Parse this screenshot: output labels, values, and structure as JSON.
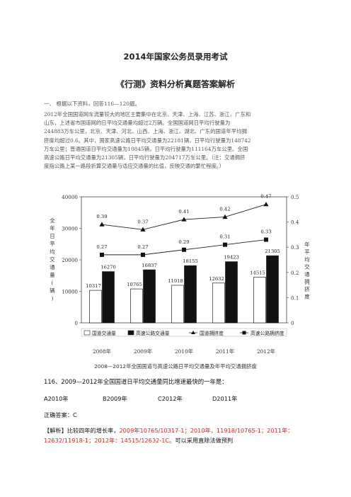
{
  "doc": {
    "title": "2014年国家公务员录用考试",
    "subtitle": "《行测》资料分析真题答案解析",
    "section": "一、 根据以下资料，回答116—120题。",
    "paragraph_lines": [
      "2012年全国国道网车流量较大的地区主要集中在北京、天津、上海、江苏、浙江、广东和",
      "山东，上述省市国道网的日平均交通量均超过2万辆。全国国道网日平均行驶量为",
      "244883万车公里，北京、天津、河北、山西、上海、浙江、湖北、广东的国道年平均拥",
      "挤度均超过0.6。其中，国家高速公路日平均交通量为22181辆，日平均行驶量为148742",
      "万车公里；普通国道日平均交通量为10845辆，日平均行驶量为111164万车公里。全国",
      "高速公路日平均交通量为21305辆，日平均行驶量为204717万车公里。（注：交通拥挤",
      "度指公路上某一路段折算交通量与适应交通量的比值，反映交通的繁忙程度。）"
    ],
    "caption": "2008—2012年全国国道与高速公路日平均交通量及年平均交通拥挤度",
    "question": "116、2009—2012年全国国道日平均交通量同比增速最快的一年是：",
    "options": [
      "A2010年",
      "B2009年",
      "C2012年",
      "D2011年"
    ],
    "answer": "正确答案：C",
    "analysis_label": "【解析】",
    "analysis_black1": "比较四年的增长率，",
    "analysis_red": "2009年10765/10317-1；2010年，11918/10765-1；2011年：12632/11918-1；2012年：14515/12632-1C。",
    "analysis_black2": "可以采用直除法做预判"
  },
  "chart_data": {
    "type": "bar",
    "categories": [
      "2008年",
      "2009年",
      "2010年",
      "2011年",
      "2012年"
    ],
    "series": [
      {
        "name": "国道交通量",
        "kind": "bar",
        "axis": "left",
        "color": "#ffffff",
        "values": [
          10317,
          10765,
          11918,
          12632,
          14515
        ]
      },
      {
        "name": "高速公路交通量",
        "kind": "bar",
        "axis": "left",
        "color": "#111111",
        "values": [
          16270,
          16837,
          18155,
          19423,
          21305
        ]
      },
      {
        "name": "国道拥挤度",
        "kind": "line",
        "axis": "right",
        "marker": "triangle",
        "values": [
          0.39,
          0.37,
          0.41,
          0.42,
          0.47
        ]
      },
      {
        "name": "高速公路拥挤度",
        "kind": "line",
        "axis": "right",
        "marker": "square",
        "values": [
          0.27,
          0.27,
          0.29,
          0.31,
          0.33
        ]
      }
    ],
    "left_axis": {
      "label": "全年日平均交通量(辆)",
      "min": 0,
      "max": 40000,
      "ticks": [
        0,
        10000,
        20000,
        30000,
        40000
      ]
    },
    "right_axis": {
      "label": "年平均交通拥挤度",
      "min": 0,
      "max": 0.5,
      "ticks": [
        "0",
        "0.1",
        "0.2",
        "0.3",
        "0.4",
        "0.5"
      ]
    },
    "legend_position": "bottom"
  }
}
